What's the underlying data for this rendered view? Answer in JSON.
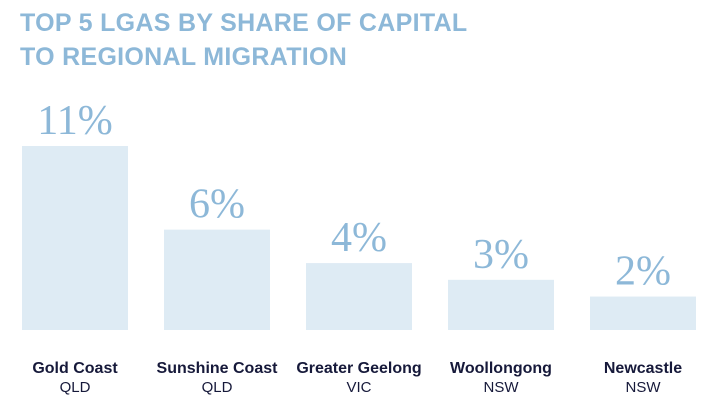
{
  "chart_data": {
    "type": "bar",
    "title": [
      "TOP 5 LGAS BY SHARE OF CAPITAL",
      "TO REGIONAL MIGRATION"
    ],
    "categories": [
      "Gold Coast",
      "Sunshine Coast",
      "Greater Geelong",
      "Woollongong",
      "Newcastle"
    ],
    "states": [
      "QLD",
      "QLD",
      "VIC",
      "NSW",
      "NSW"
    ],
    "values": [
      11,
      6,
      4,
      3,
      2
    ],
    "value_labels": [
      "11%",
      "6%",
      "4%",
      "3%",
      "2%"
    ],
    "color": "#deebf4"
  }
}
